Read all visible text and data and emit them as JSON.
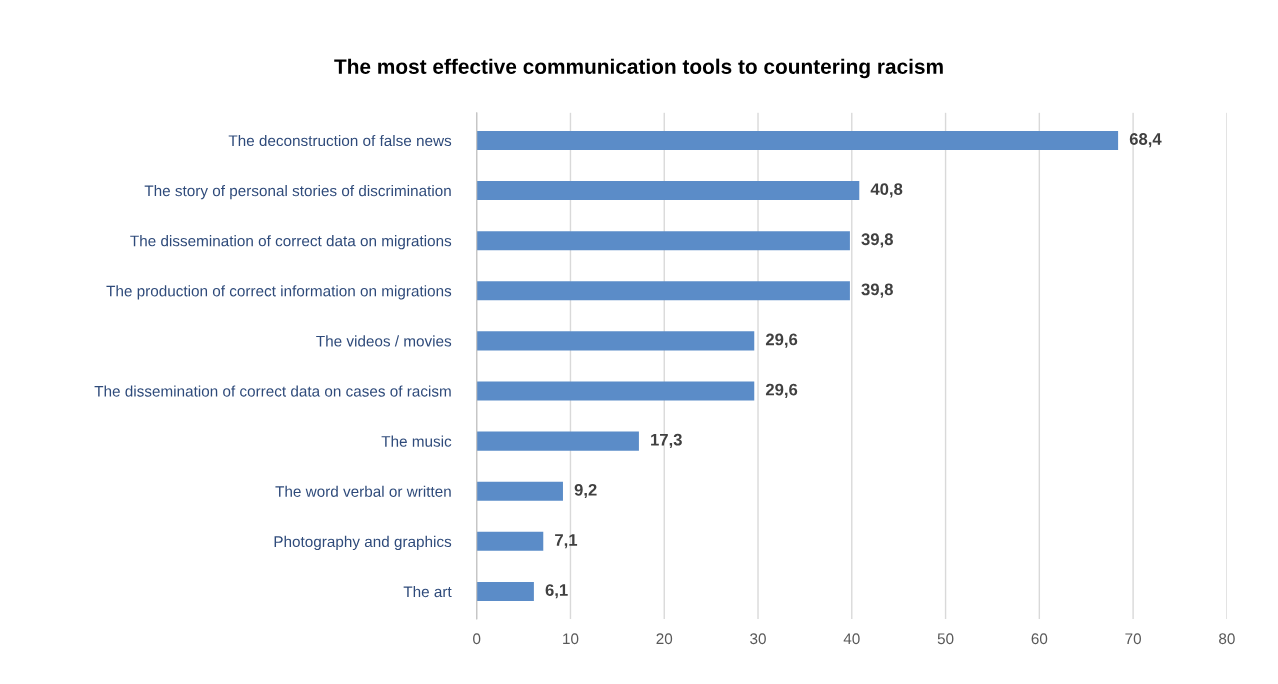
{
  "chart_data": {
    "type": "bar",
    "orientation": "horizontal",
    "title": "The most effective communication tools to countering racism",
    "categories": [
      "The deconstruction of false news",
      "The story of personal stories of discrimination",
      "The dissemination of correct data on migrations",
      "The production of correct information on migrations",
      "The videos / movies",
      "The dissemination of correct data on cases of racism",
      "The music",
      "The word verbal or written",
      "Photography and graphics",
      "The art"
    ],
    "values": [
      68.4,
      40.8,
      39.8,
      39.8,
      29.6,
      29.6,
      17.3,
      9.2,
      7.1,
      6.1
    ],
    "value_labels": [
      "68,4",
      "40,8",
      "39,8",
      "39,8",
      "29,6",
      "29,6",
      "17,3",
      "9,2",
      "7,1",
      "6,1"
    ],
    "color": "#5b8cc8",
    "xlim": [
      0,
      80
    ],
    "xticks": [
      0,
      10,
      20,
      30,
      40,
      50,
      60,
      70,
      80
    ],
    "grid": "x",
    "legend": false
  }
}
